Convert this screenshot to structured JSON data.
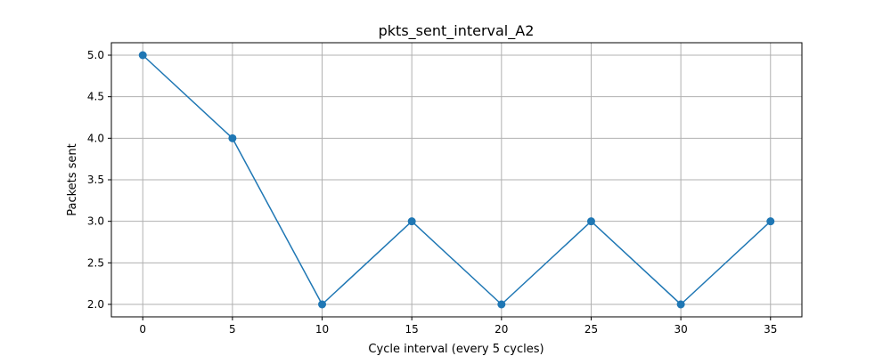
{
  "chart_data": {
    "type": "line",
    "title": "pkts_sent_interval_A2",
    "xlabel": "Cycle interval (every 5 cycles)",
    "ylabel": "Packets sent",
    "x": [
      0,
      5,
      10,
      15,
      20,
      25,
      30,
      35
    ],
    "series": [
      {
        "values": [
          5.0,
          4.0,
          2.0,
          3.0,
          2.0,
          3.0,
          2.0,
          3.0
        ],
        "color": "#1f77b4",
        "marker": "circle"
      }
    ],
    "xlim": [
      -1.75,
      36.75
    ],
    "ylim": [
      1.85,
      5.15
    ],
    "xticks": [
      0,
      5,
      10,
      15,
      20,
      25,
      30,
      35
    ],
    "xtick_labels": [
      "0",
      "5",
      "10",
      "15",
      "20",
      "25",
      "30",
      "35"
    ],
    "yticks": [
      2.0,
      2.5,
      3.0,
      3.5,
      4.0,
      4.5,
      5.0
    ],
    "ytick_labels": [
      "2.0",
      "2.5",
      "3.0",
      "3.5",
      "4.0",
      "4.5",
      "5.0"
    ],
    "grid": true,
    "legend": "none"
  }
}
